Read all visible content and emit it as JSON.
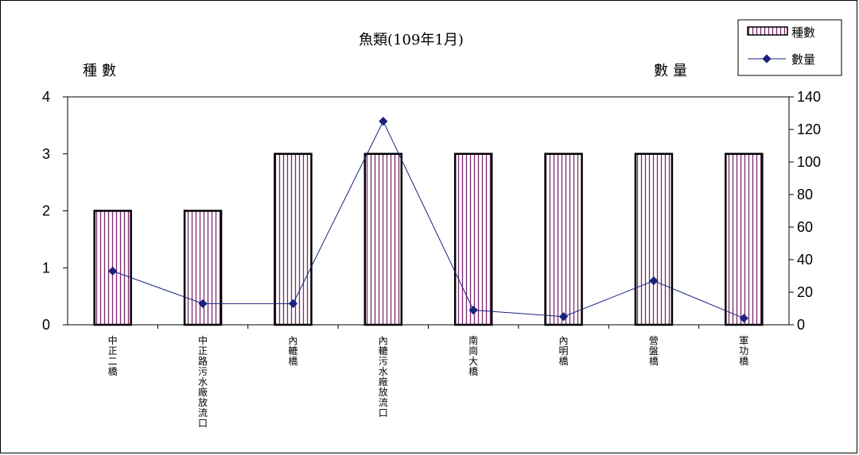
{
  "chart_data": {
    "type": "bar+line",
    "title": "魚類(109年1月)",
    "ylabel_left": "種數",
    "ylabel_right": "數量",
    "categories": [
      "中正二橋",
      "中正路污水廠放流口",
      "內轆橋",
      "內轆污水廠放流口",
      "南崗大橋",
      "內明橋",
      "營盤橋",
      "軍功橋"
    ],
    "series": [
      {
        "name": "種數",
        "type": "bar",
        "axis": "left",
        "values": [
          2,
          2,
          3,
          3,
          3,
          3,
          3,
          3
        ]
      },
      {
        "name": "數量",
        "type": "line",
        "axis": "right",
        "values": [
          33,
          13,
          13,
          125,
          9,
          5,
          27,
          4
        ]
      }
    ],
    "ylim_left": [
      0,
      4
    ],
    "yticks_left": [
      "0",
      "1",
      "2",
      "3",
      "4"
    ],
    "ylim_right": [
      0,
      140
    ],
    "yticks_right": [
      "0",
      "20",
      "40",
      "60",
      "80",
      "100",
      "120",
      "140"
    ],
    "legend_position": "top-right",
    "colors": {
      "bar_fill": "#ffffff",
      "bar_stripe": "#7a2a6e",
      "bar_edge": "#000000",
      "line": "#1a237e",
      "marker": "#1a237e"
    }
  }
}
